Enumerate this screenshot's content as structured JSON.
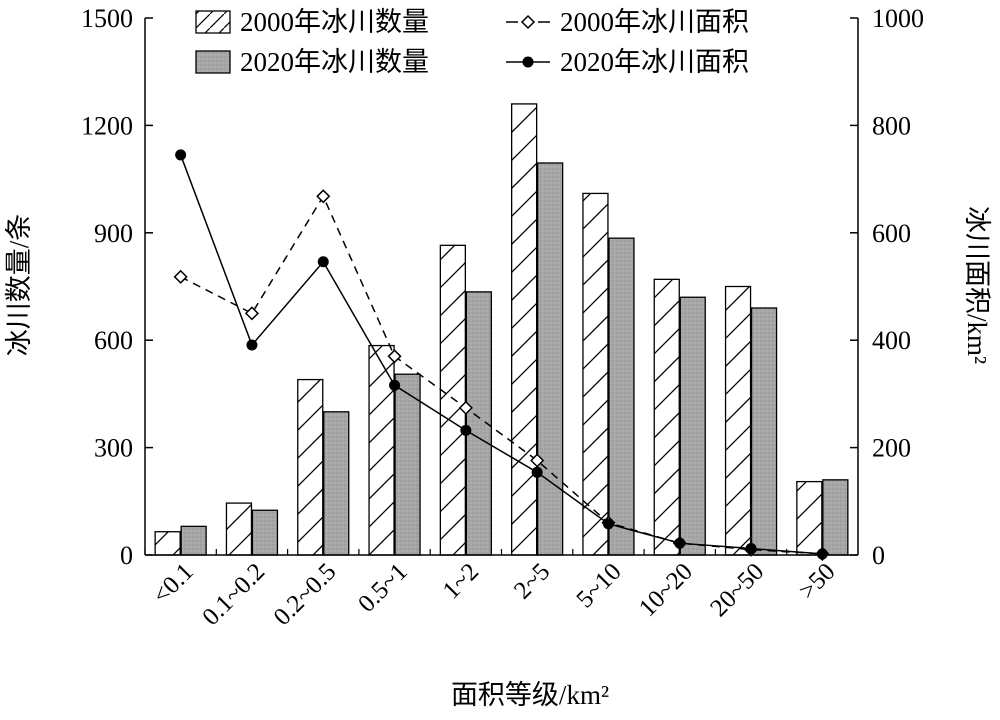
{
  "chart_data": {
    "type": "bar",
    "categories": [
      "<0.1",
      "0.1~0.2",
      "0.2~0.5",
      "0.5~1",
      "1~2",
      "2~5",
      "5~10",
      "10~20",
      "20~50",
      ">50"
    ],
    "series": [
      {
        "name": "2000年冰川数量",
        "kind": "bar",
        "axis": "left",
        "pattern": "hatch",
        "values": [
          65,
          145,
          490,
          585,
          865,
          1260,
          1010,
          770,
          750,
          205
        ]
      },
      {
        "name": "2020年冰川数量",
        "kind": "bar",
        "axis": "left",
        "pattern": "gray",
        "values": [
          80,
          125,
          400,
          505,
          735,
          1095,
          885,
          720,
          690,
          210
        ]
      },
      {
        "name": "2000年冰川面积",
        "kind": "line",
        "axis": "right",
        "style": "dashed",
        "marker": "diamond-open",
        "values": [
          518,
          450,
          668,
          370,
          274,
          176,
          60,
          22,
          10,
          2
        ]
      },
      {
        "name": "2020年冰川面积",
        "kind": "line",
        "axis": "right",
        "style": "solid",
        "marker": "circle-filled",
        "values": [
          745,
          391,
          546,
          316,
          232,
          154,
          58,
          22,
          12,
          2
        ]
      }
    ],
    "xlabel": "面积等级/km²",
    "ylabel": "冰川数量/条",
    "y2label": "冰川面积/km²",
    "ylim": [
      0,
      1500
    ],
    "y2lim": [
      0,
      1000
    ],
    "yticks": [
      "0",
      "300",
      "600",
      "900",
      "1200",
      "1500"
    ],
    "y2ticks": [
      "0",
      "200",
      "400",
      "600",
      "800",
      "1000"
    ],
    "grid": false,
    "legend_position": "top-center",
    "colors": {
      "gray_bar": "#a6a6a6",
      "hatch_bar": "#ffffff",
      "lines": "#000000"
    }
  }
}
